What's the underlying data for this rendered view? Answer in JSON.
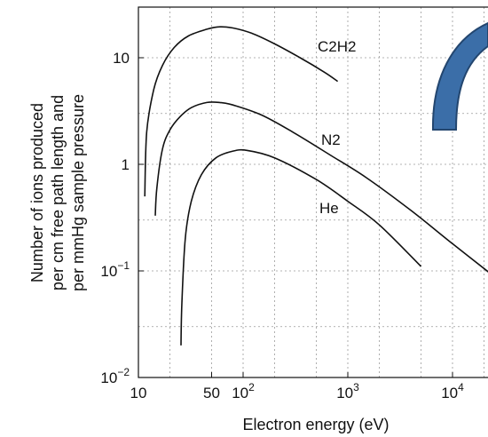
{
  "chart_data": {
    "type": "line",
    "title": "",
    "xlabel": "Electron energy (eV)",
    "ylabel_lines": [
      "Number of ions produced",
      "per cm free path length and",
      "per mmHg sample pressure"
    ],
    "x_scale": "log",
    "y_scale": "log",
    "xlim": [
      10,
      25000
    ],
    "ylim": [
      0.01,
      30
    ],
    "grid": true,
    "x_ticks": [
      {
        "value": 10,
        "label": "10"
      },
      {
        "value": 50,
        "label": "50"
      },
      {
        "value": 100,
        "label": "10",
        "exp": "2"
      },
      {
        "value": 1000,
        "label": "10",
        "exp": "3"
      },
      {
        "value": 10000,
        "label": "10",
        "exp": "4"
      }
    ],
    "y_ticks": [
      {
        "value": 10,
        "label": "10",
        "exp": ""
      },
      {
        "value": 1,
        "label": "1",
        "exp": ""
      },
      {
        "value": 0.1,
        "label": "10",
        "exp": "−1"
      },
      {
        "value": 0.01,
        "label": "10",
        "exp": "−2"
      }
    ],
    "series": [
      {
        "name": "C2H2",
        "x": [
          11.5,
          12,
          14,
          17,
          22,
          30,
          45,
          60,
          80,
          120,
          200,
          350,
          600,
          800
        ],
        "y": [
          0.5,
          2.0,
          5.0,
          8.5,
          12.5,
          16.0,
          18.5,
          19.5,
          19.0,
          17.0,
          13.5,
          10.0,
          7.3,
          6.0
        ]
      },
      {
        "name": "N2",
        "x": [
          14.5,
          15,
          17,
          20,
          25,
          32,
          45,
          60,
          80,
          150,
          300,
          700,
          1500,
          4000,
          10000,
          25000
        ],
        "y": [
          0.33,
          0.6,
          1.4,
          2.1,
          2.8,
          3.4,
          3.8,
          3.8,
          3.6,
          2.9,
          2.0,
          1.2,
          0.75,
          0.37,
          0.18,
          0.09
        ]
      },
      {
        "name": "He",
        "x": [
          25.5,
          26,
          28,
          32,
          40,
          55,
          80,
          110,
          200,
          500,
          1000,
          2000,
          5000
        ],
        "y": [
          0.02,
          0.05,
          0.2,
          0.45,
          0.8,
          1.15,
          1.33,
          1.35,
          1.15,
          0.72,
          0.45,
          0.27,
          0.11
        ]
      }
    ]
  },
  "decoration": {
    "arc_icon": "blue-arc-shape",
    "arc_color": "#3b6ea8",
    "arc_stroke": "#23466f"
  }
}
